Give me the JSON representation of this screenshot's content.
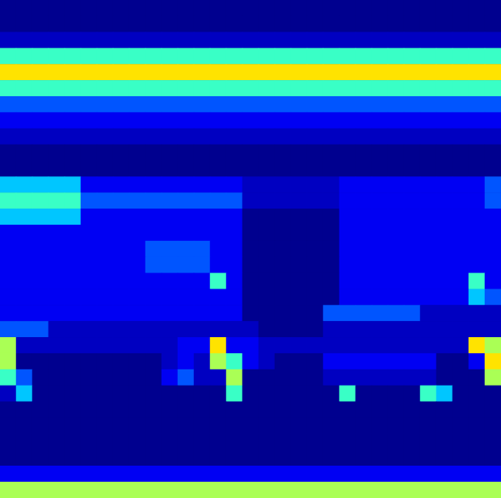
{
  "chart_data": {
    "type": "heatmap",
    "tick_labels": false,
    "clim": [
      0,
      9
    ],
    "cells": [
      [
        0,
        0,
        0,
        0,
        0,
        0,
        0,
        0,
        0,
        0,
        0,
        0,
        0,
        0,
        0,
        0,
        0,
        0,
        0,
        0,
        0,
        0,
        0,
        0,
        0,
        0,
        0,
        0,
        0,
        0,
        0
      ],
      [
        0,
        0,
        0,
        0,
        0,
        0,
        0,
        0,
        0,
        0,
        0,
        0,
        0,
        0,
        0,
        0,
        0,
        0,
        0,
        0,
        0,
        0,
        0,
        0,
        0,
        0,
        0,
        0,
        0,
        0,
        0
      ],
      [
        1,
        1,
        1,
        1,
        1,
        1,
        1,
        1,
        1,
        1,
        1,
        1,
        1,
        1,
        1,
        1,
        1,
        1,
        1,
        1,
        1,
        1,
        1,
        1,
        1,
        1,
        1,
        1,
        1,
        1,
        1
      ],
      [
        5,
        5,
        5,
        5,
        5,
        5,
        5,
        5,
        5,
        5,
        5,
        5,
        5,
        5,
        5,
        5,
        5,
        5,
        5,
        5,
        5,
        5,
        5,
        5,
        5,
        5,
        5,
        5,
        5,
        5,
        5
      ],
      [
        7,
        7,
        7,
        7,
        7,
        7,
        7,
        7,
        7,
        7,
        7,
        7,
        7,
        7,
        7,
        7,
        7,
        7,
        7,
        7,
        7,
        7,
        7,
        7,
        7,
        7,
        7,
        7,
        7,
        7,
        7
      ],
      [
        5,
        5,
        5,
        5,
        5,
        5,
        5,
        5,
        5,
        5,
        5,
        5,
        5,
        5,
        5,
        5,
        5,
        5,
        5,
        5,
        5,
        5,
        5,
        5,
        5,
        5,
        5,
        5,
        5,
        5,
        5
      ],
      [
        3,
        3,
        3,
        3,
        3,
        3,
        3,
        3,
        3,
        3,
        3,
        3,
        3,
        3,
        3,
        3,
        3,
        3,
        3,
        3,
        3,
        3,
        3,
        3,
        3,
        3,
        3,
        3,
        3,
        3,
        3
      ],
      [
        2,
        2,
        2,
        2,
        2,
        2,
        2,
        2,
        2,
        2,
        2,
        2,
        2,
        2,
        2,
        2,
        2,
        2,
        2,
        2,
        2,
        2,
        2,
        2,
        2,
        2,
        2,
        2,
        2,
        2,
        2
      ],
      [
        1,
        1,
        1,
        1,
        1,
        1,
        1,
        1,
        1,
        1,
        1,
        1,
        1,
        1,
        1,
        1,
        1,
        1,
        1,
        1,
        1,
        1,
        1,
        1,
        1,
        1,
        1,
        1,
        1,
        1,
        1
      ],
      [
        0,
        0,
        0,
        0,
        0,
        0,
        0,
        0,
        0,
        0,
        0,
        0,
        0,
        0,
        0,
        0,
        0,
        0,
        0,
        0,
        0,
        0,
        0,
        0,
        0,
        0,
        0,
        0,
        0,
        0,
        0
      ],
      [
        0,
        0,
        0,
        0,
        0,
        0,
        0,
        0,
        0,
        0,
        0,
        0,
        0,
        0,
        0,
        0,
        0,
        0,
        0,
        0,
        0,
        0,
        0,
        0,
        0,
        0,
        0,
        0,
        0,
        0,
        0
      ],
      [
        4,
        4,
        4,
        4,
        4,
        2,
        2,
        2,
        2,
        2,
        2,
        2,
        2,
        2,
        2,
        1,
        1,
        1,
        1,
        1,
        1,
        2,
        2,
        2,
        2,
        2,
        2,
        2,
        2,
        2,
        3
      ],
      [
        5,
        5,
        5,
        5,
        5,
        3,
        3,
        3,
        3,
        3,
        3,
        3,
        3,
        3,
        3,
        1,
        1,
        1,
        1,
        1,
        1,
        2,
        2,
        2,
        2,
        2,
        2,
        2,
        2,
        2,
        3
      ],
      [
        4,
        4,
        4,
        4,
        4,
        2,
        2,
        2,
        2,
        2,
        2,
        2,
        2,
        2,
        2,
        0,
        0,
        0,
        0,
        0,
        0,
        2,
        2,
        2,
        2,
        2,
        2,
        2,
        2,
        2,
        2
      ],
      [
        2,
        2,
        2,
        2,
        2,
        2,
        2,
        2,
        2,
        2,
        2,
        2,
        2,
        2,
        2,
        0,
        0,
        0,
        0,
        0,
        0,
        2,
        2,
        2,
        2,
        2,
        2,
        2,
        2,
        2,
        2
      ],
      [
        2,
        2,
        2,
        2,
        2,
        2,
        2,
        2,
        2,
        3,
        3,
        3,
        3,
        2,
        2,
        0,
        0,
        0,
        0,
        0,
        0,
        2,
        2,
        2,
        2,
        2,
        2,
        2,
        2,
        2,
        2
      ],
      [
        2,
        2,
        2,
        2,
        2,
        2,
        2,
        2,
        2,
        3,
        3,
        3,
        3,
        2,
        2,
        0,
        0,
        0,
        0,
        0,
        0,
        2,
        2,
        2,
        2,
        2,
        2,
        2,
        2,
        2,
        2
      ],
      [
        2,
        2,
        2,
        2,
        2,
        2,
        2,
        2,
        2,
        2,
        2,
        2,
        2,
        5,
        2,
        0,
        0,
        0,
        0,
        0,
        0,
        2,
        2,
        2,
        2,
        2,
        2,
        2,
        2,
        5,
        2
      ],
      [
        2,
        2,
        2,
        2,
        2,
        2,
        2,
        2,
        2,
        2,
        2,
        2,
        2,
        2,
        2,
        0,
        0,
        0,
        0,
        0,
        0,
        2,
        2,
        2,
        2,
        2,
        2,
        2,
        2,
        4,
        3
      ],
      [
        2,
        2,
        2,
        2,
        2,
        2,
        2,
        2,
        2,
        2,
        2,
        2,
        2,
        2,
        2,
        0,
        0,
        0,
        0,
        0,
        3,
        3,
        3,
        3,
        3,
        3,
        1,
        1,
        1,
        1,
        1
      ],
      [
        3,
        3,
        3,
        1,
        1,
        1,
        1,
        1,
        1,
        1,
        1,
        1,
        1,
        1,
        1,
        1,
        0,
        0,
        0,
        0,
        1,
        1,
        1,
        1,
        1,
        1,
        1,
        1,
        1,
        1,
        1
      ],
      [
        6,
        1,
        1,
        1,
        1,
        1,
        1,
        1,
        1,
        1,
        1,
        2,
        2,
        7,
        2,
        2,
        1,
        1,
        1,
        1,
        1,
        1,
        1,
        1,
        1,
        1,
        1,
        1,
        1,
        7,
        6
      ],
      [
        6,
        0,
        0,
        0,
        0,
        0,
        0,
        0,
        0,
        0,
        1,
        2,
        1,
        6,
        5,
        2,
        1,
        0,
        0,
        0,
        2,
        2,
        2,
        2,
        2,
        2,
        2,
        0,
        0,
        2,
        7
      ],
      [
        5,
        3,
        0,
        0,
        0,
        0,
        0,
        0,
        0,
        0,
        2,
        3,
        1,
        1,
        6,
        0,
        0,
        0,
        0,
        0,
        1,
        1,
        1,
        1,
        1,
        1,
        1,
        0,
        0,
        0,
        6
      ],
      [
        1,
        4,
        0,
        0,
        0,
        0,
        0,
        0,
        0,
        0,
        0,
        0,
        0,
        0,
        5,
        0,
        0,
        0,
        0,
        0,
        0,
        5,
        0,
        0,
        0,
        0,
        5,
        4,
        0,
        0,
        0
      ],
      [
        0,
        0,
        0,
        0,
        0,
        0,
        0,
        0,
        0,
        0,
        0,
        0,
        0,
        0,
        0,
        0,
        0,
        0,
        0,
        0,
        0,
        0,
        0,
        0,
        0,
        0,
        0,
        0,
        0,
        0,
        0
      ],
      [
        0,
        0,
        0,
        0,
        0,
        0,
        0,
        0,
        0,
        0,
        0,
        0,
        0,
        0,
        0,
        0,
        0,
        0,
        0,
        0,
        0,
        0,
        0,
        0,
        0,
        0,
        0,
        0,
        0,
        0,
        0
      ],
      [
        0,
        0,
        0,
        0,
        0,
        0,
        0,
        0,
        0,
        0,
        0,
        0,
        0,
        0,
        0,
        0,
        0,
        0,
        0,
        0,
        0,
        0,
        0,
        0,
        0,
        0,
        0,
        0,
        0,
        0,
        0
      ],
      [
        0,
        0,
        0,
        0,
        0,
        0,
        0,
        0,
        0,
        0,
        0,
        0,
        0,
        0,
        0,
        0,
        0,
        0,
        0,
        0,
        0,
        0,
        0,
        0,
        0,
        0,
        0,
        0,
        0,
        0,
        0
      ],
      [
        2,
        2,
        2,
        2,
        2,
        2,
        2,
        2,
        2,
        2,
        2,
        2,
        2,
        2,
        2,
        2,
        2,
        2,
        2,
        2,
        2,
        2,
        2,
        2,
        2,
        2,
        2,
        2,
        2,
        2,
        2
      ],
      [
        6,
        6,
        6,
        6,
        6,
        6,
        6,
        6,
        6,
        6,
        6,
        6,
        6,
        6,
        6,
        6,
        6,
        6,
        6,
        6,
        6,
        6,
        6,
        6,
        6,
        6,
        6,
        6,
        6,
        6,
        6
      ]
    ]
  }
}
